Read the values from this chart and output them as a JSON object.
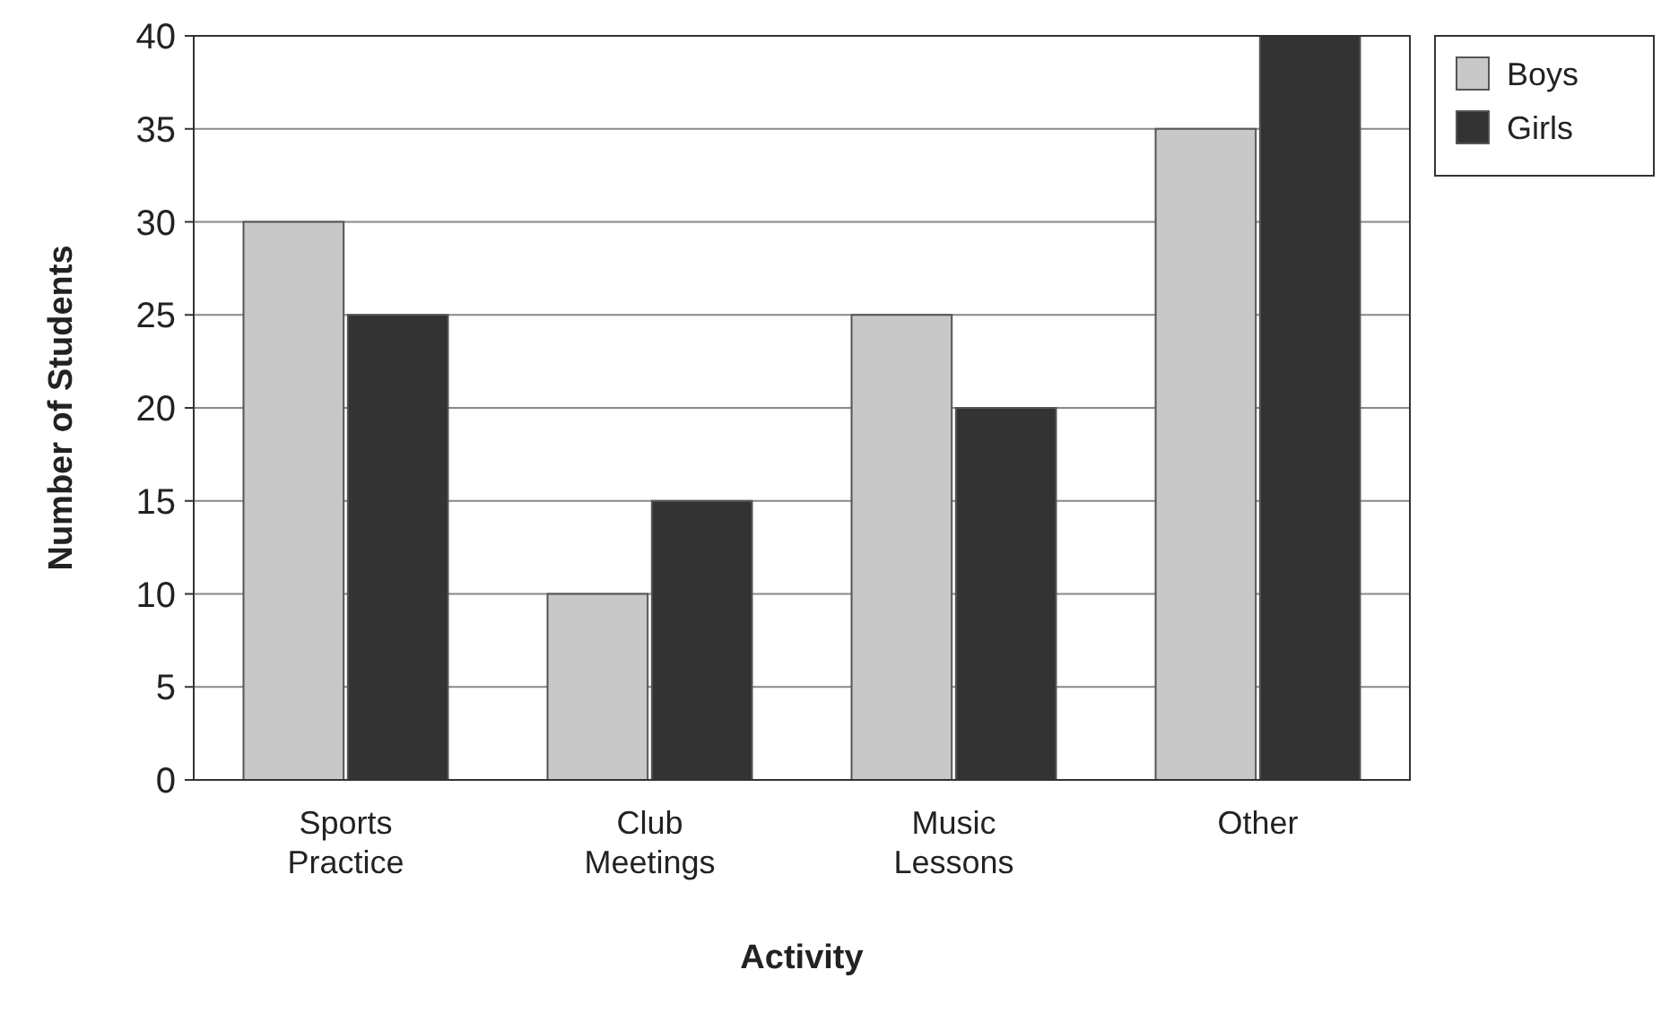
{
  "chart_data": {
    "type": "bar",
    "xlabel": "Activity",
    "ylabel": "Number of Students",
    "categories": [
      "Sports Practice",
      "Club Meetings",
      "Music Lessons",
      "Other"
    ],
    "series": [
      {
        "name": "Boys",
        "color": "#c8c8c8",
        "values": [
          30,
          10,
          25,
          35
        ]
      },
      {
        "name": "Girls",
        "color": "#333333",
        "values": [
          25,
          15,
          20,
          40
        ]
      }
    ],
    "ylim": [
      0,
      40
    ],
    "yticks": [
      0,
      5,
      10,
      15,
      20,
      25,
      30,
      35,
      40
    ],
    "grid": "y",
    "legend": "top right"
  }
}
